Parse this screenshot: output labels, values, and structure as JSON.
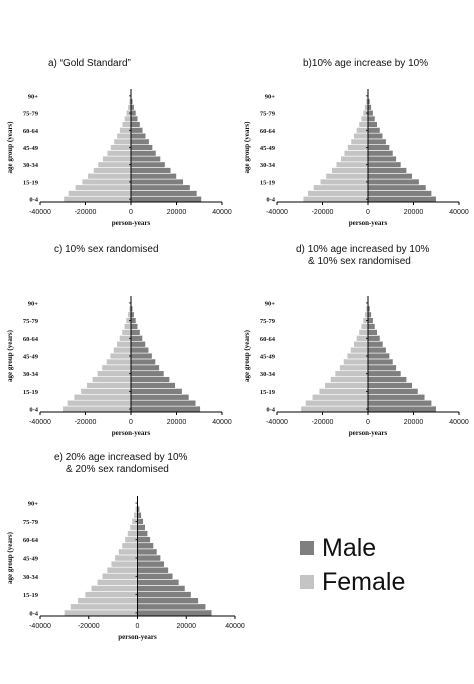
{
  "colors": {
    "male": "#7f7f7f",
    "female": "#c4c4c4",
    "axis": "#000000"
  },
  "legend": {
    "male_label": "Male",
    "female_label": "Female"
  },
  "chart_data": [
    {
      "type": "bar",
      "panel_label": "a)",
      "title": "“Gold Standard”",
      "title_line2": "",
      "xlabel": "person-years",
      "ylabel": "age group (years)",
      "xlim": [
        -40000,
        40000
      ],
      "xticks": [
        "-40000",
        "-20000",
        "0",
        "20000",
        "40000"
      ],
      "yticks": [
        "0-4",
        "15-19",
        "30-34",
        "45-49",
        "60-64",
        "75-79",
        "90+"
      ],
      "categories": [
        "0-4",
        "5-9",
        "10-14",
        "15-19",
        "20-24",
        "25-29",
        "30-34",
        "35-39",
        "40-44",
        "45-49",
        "50-54",
        "55-59",
        "60-64",
        "65-69",
        "70-74",
        "75-79",
        "80-84",
        "85-89",
        "90+"
      ],
      "series": [
        {
          "name": "Male",
          "values": [
            31000,
            29000,
            26000,
            23000,
            20000,
            17500,
            15000,
            13000,
            11000,
            9500,
            8000,
            6500,
            5200,
            4000,
            3000,
            2200,
            1400,
            800,
            300
          ]
        },
        {
          "name": "Female",
          "values": [
            -29500,
            -27500,
            -24500,
            -21500,
            -19000,
            -16500,
            -14500,
            -12500,
            -10500,
            -9000,
            -7500,
            -6200,
            -5000,
            -3900,
            -2900,
            -2100,
            -1400,
            -800,
            -300
          ]
        }
      ]
    },
    {
      "type": "bar",
      "panel_label": "b)",
      "title": "10% age increase by 10%",
      "title_line2": "",
      "xlabel": "person-years",
      "ylabel": "age group (years)",
      "xlim": [
        -40000,
        40000
      ],
      "xticks": [
        "-40000",
        "-20000",
        "0",
        "20000",
        "40000"
      ],
      "yticks": [
        "0-4",
        "15-19",
        "30-34",
        "45-49",
        "60-64",
        "75-79",
        "90+"
      ],
      "categories": [
        "0-4",
        "5-9",
        "10-14",
        "15-19",
        "20-24",
        "25-29",
        "30-34",
        "35-39",
        "40-44",
        "45-49",
        "50-54",
        "55-59",
        "60-64",
        "65-69",
        "70-74",
        "75-79",
        "80-84",
        "85-89",
        "90+"
      ],
      "series": [
        {
          "name": "Male",
          "values": [
            30000,
            28000,
            25500,
            22500,
            19500,
            17000,
            14500,
            12500,
            11000,
            9500,
            8000,
            6500,
            5300,
            4100,
            3100,
            2300,
            1500,
            900,
            300
          ]
        },
        {
          "name": "Female",
          "values": [
            -28500,
            -26500,
            -24000,
            -21000,
            -18500,
            -16000,
            -14000,
            -12000,
            -10500,
            -9000,
            -7500,
            -6300,
            -5100,
            -4000,
            -3000,
            -2200,
            -1500,
            -900,
            -300
          ]
        }
      ]
    },
    {
      "type": "bar",
      "panel_label": "c)",
      "title": "10% sex randomised",
      "title_line2": "",
      "xlabel": "person-years",
      "ylabel": "age group (years)",
      "xlim": [
        -40000,
        40000
      ],
      "xticks": [
        "-40000",
        "-20000",
        "0",
        "20000",
        "40000"
      ],
      "yticks": [
        "0-4",
        "15-19",
        "30-34",
        "45-49",
        "60-64",
        "75-79",
        "90+"
      ],
      "categories": [
        "0-4",
        "5-9",
        "10-14",
        "15-19",
        "20-24",
        "25-29",
        "30-34",
        "35-39",
        "40-44",
        "45-49",
        "50-54",
        "55-59",
        "60-64",
        "65-69",
        "70-74",
        "75-79",
        "80-84",
        "85-89",
        "90+"
      ],
      "series": [
        {
          "name": "Male",
          "values": [
            30500,
            28500,
            25500,
            22500,
            19500,
            17000,
            14500,
            12500,
            10800,
            9300,
            7800,
            6400,
            5100,
            4000,
            3000,
            2200,
            1400,
            800,
            300
          ]
        },
        {
          "name": "Female",
          "values": [
            -30000,
            -28000,
            -25000,
            -22000,
            -19500,
            -17000,
            -14800,
            -12800,
            -10800,
            -9200,
            -7700,
            -6300,
            -5100,
            -4000,
            -3000,
            -2200,
            -1400,
            -800,
            -300
          ]
        }
      ]
    },
    {
      "type": "bar",
      "panel_label": "d)",
      "title": "10% age increased by 10%",
      "title_line2": "& 10% sex randomised",
      "xlabel": "person-years",
      "ylabel": "age group (years)",
      "xlim": [
        -40000,
        40000
      ],
      "xticks": [
        "-40000",
        "-20000",
        "0",
        "20000",
        "40000"
      ],
      "yticks": [
        "0-4",
        "15-19",
        "30-34",
        "45-49",
        "60-64",
        "75-79",
        "90+"
      ],
      "categories": [
        "0-4",
        "5-9",
        "10-14",
        "15-19",
        "20-24",
        "25-29",
        "30-34",
        "35-39",
        "40-44",
        "45-49",
        "50-54",
        "55-59",
        "60-64",
        "65-69",
        "70-74",
        "75-79",
        "80-84",
        "85-89",
        "90+"
      ],
      "series": [
        {
          "name": "Male",
          "values": [
            30000,
            28000,
            25000,
            22000,
            19500,
            17000,
            14500,
            12500,
            11000,
            9500,
            8000,
            6600,
            5300,
            4100,
            3100,
            2300,
            1500,
            900,
            300
          ]
        },
        {
          "name": "Female",
          "values": [
            -29500,
            -27500,
            -24500,
            -21500,
            -19000,
            -16500,
            -14500,
            -12500,
            -10800,
            -9200,
            -7700,
            -6300,
            -5100,
            -4000,
            -3000,
            -2200,
            -1500,
            -900,
            -300
          ]
        }
      ]
    },
    {
      "type": "bar",
      "panel_label": "e)",
      "title": "20% age increased by 10%",
      "title_line2": "& 20% sex randomised",
      "xlabel": "person-years",
      "ylabel": "age group (years)",
      "xlim": [
        -40000,
        40000
      ],
      "xticks": [
        "-40000",
        "-20000",
        "0",
        "20000",
        "40000"
      ],
      "yticks": [
        "0-4",
        "15-19",
        "30-34",
        "45-49",
        "60-64",
        "75-79",
        "90+"
      ],
      "categories": [
        "0-4",
        "5-9",
        "10-14",
        "15-19",
        "20-24",
        "25-29",
        "30-34",
        "35-39",
        "40-44",
        "45-49",
        "50-54",
        "55-59",
        "60-64",
        "65-69",
        "70-74",
        "75-79",
        "80-84",
        "85-89",
        "90+"
      ],
      "series": [
        {
          "name": "Male",
          "values": [
            30500,
            28000,
            25000,
            22000,
            19500,
            17000,
            14500,
            12700,
            11000,
            9500,
            8000,
            6600,
            5300,
            4200,
            3200,
            2400,
            1600,
            900,
            300
          ]
        },
        {
          "name": "Female",
          "values": [
            -30000,
            -27500,
            -24500,
            -21500,
            -19000,
            -16500,
            -14500,
            -12500,
            -10800,
            -9300,
            -7800,
            -6400,
            -5200,
            -4100,
            -3100,
            -2300,
            -1500,
            -900,
            -300
          ]
        }
      ]
    }
  ]
}
